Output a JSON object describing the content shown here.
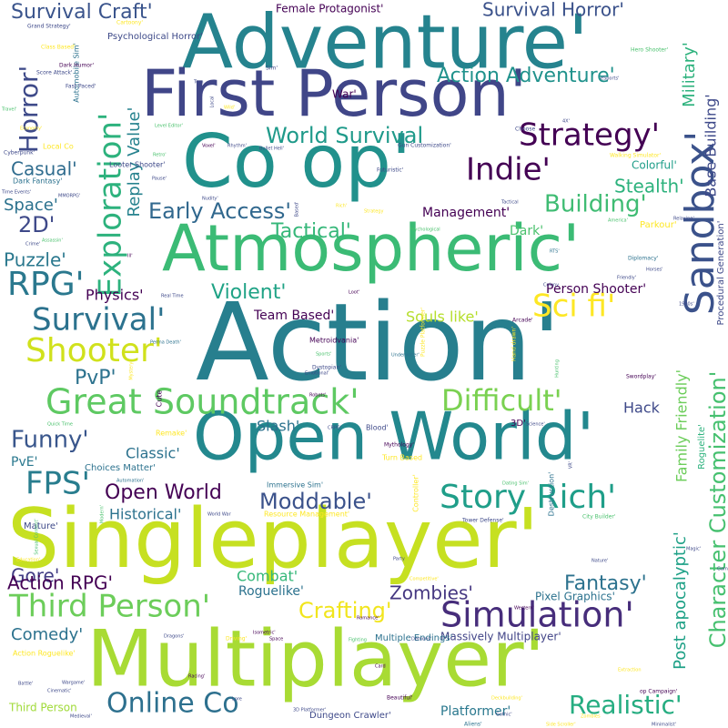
{
  "palette": {
    "background": "#ffffff",
    "colormap": "viridis",
    "colors": [
      "#440154",
      "#46337e",
      "#365c8d",
      "#277f8e",
      "#1fa187",
      "#4ac16d",
      "#a0da39",
      "#d8e219",
      "#fde725"
    ]
  },
  "words": [
    {
      "text": "Action'",
      "color": "#277f8e",
      "weight": 100
    },
    {
      "text": "Singleplayer'",
      "color": "#c6e021",
      "weight": 90
    },
    {
      "text": "Multiplayer'",
      "color": "#a8db34",
      "weight": 82
    },
    {
      "text": "Adventure'",
      "color": "#25838e",
      "weight": 78
    },
    {
      "text": "Co op'",
      "color": "#21918c",
      "weight": 76
    },
    {
      "text": "Open World'",
      "color": "#23888e",
      "weight": 72
    },
    {
      "text": "First Person'",
      "color": "#404688",
      "weight": 70
    },
    {
      "text": "Atmospheric'",
      "color": "#3bbb75",
      "weight": 68
    },
    {
      "text": "Sandbox'",
      "color": "#3b528b",
      "weight": 48
    },
    {
      "text": "Great Soundtrack'",
      "color": "#5ec962",
      "weight": 46
    },
    {
      "text": "Simulation'",
      "color": "#472d7b",
      "weight": 40
    },
    {
      "text": "Story Rich'",
      "color": "#1f9e89",
      "weight": 40
    },
    {
      "text": "Exploration'",
      "color": "#2db27d",
      "weight": 40
    },
    {
      "text": "Shooter'",
      "color": "#d0e11c",
      "weight": 36
    },
    {
      "text": "Strategy'",
      "color": "#440154",
      "weight": 36
    },
    {
      "text": "Indie'",
      "color": "#440154",
      "weight": 36
    },
    {
      "text": "Survival'",
      "color": "#2c728e",
      "weight": 34
    },
    {
      "text": "Difficult'",
      "color": "#7ad151",
      "weight": 34
    },
    {
      "text": "Third Person'",
      "color": "#6ccd5a",
      "weight": 32
    },
    {
      "text": "FPS'",
      "color": "#287d8e",
      "weight": 32
    },
    {
      "text": "Sci fi'",
      "color": "#fde725",
      "weight": 32
    },
    {
      "text": "RPG'",
      "color": "#2a788e",
      "weight": 32
    },
    {
      "text": "Online Co",
      "color": "#2d708e",
      "weight": 30
    },
    {
      "text": "Funny'",
      "color": "#39568c",
      "weight": 28
    },
    {
      "text": "Horror'",
      "color": "#3e4a89",
      "weight": 28
    },
    {
      "text": "Realistic'",
      "color": "#26ad81",
      "weight": 26
    },
    {
      "text": "Character Customization'",
      "color": "#46c06f",
      "weight": 22
    },
    {
      "text": "Building'",
      "color": "#3fbc73",
      "weight": 26
    },
    {
      "text": "World Survival",
      "color": "#1f9a8a",
      "weight": 24
    },
    {
      "text": "Early Access'",
      "color": "#31688e",
      "weight": 24
    },
    {
      "text": "Moddable'",
      "color": "#3b528b",
      "weight": 24
    },
    {
      "text": "Crafting'",
      "color": "#f1e51d",
      "weight": 24
    },
    {
      "text": "Survival Craft'",
      "color": "#3a548c",
      "weight": 22
    },
    {
      "text": "Action Adventure'",
      "color": "#20928c",
      "weight": 22
    },
    {
      "text": "Fantasy'",
      "color": "#2c728e",
      "weight": 22
    },
    {
      "text": "Tactical'",
      "color": "#35b779",
      "weight": 22
    },
    {
      "text": "Survival Horror'",
      "color": "#3b528b",
      "weight": 20
    },
    {
      "text": "Military'",
      "color": "#2db27d",
      "weight": 18
    },
    {
      "text": "Stealth'",
      "color": "#2db27d",
      "weight": 20
    },
    {
      "text": "Open World",
      "color": "#440154",
      "weight": 22
    },
    {
      "text": "Violent'",
      "color": "#20a386",
      "weight": 22
    },
    {
      "text": "Post apocalyptic'",
      "color": "#1fa187",
      "weight": 18
    },
    {
      "text": "Replay Value'",
      "color": "#26828e",
      "weight": 18
    },
    {
      "text": "Base Building'",
      "color": "#3e4989",
      "weight": 16
    },
    {
      "text": "Family Friendly'",
      "color": "#6ccd5a",
      "weight": 16
    },
    {
      "text": "Zombies'",
      "color": "#453781",
      "weight": 20
    },
    {
      "text": "Gore'",
      "color": "#433e85",
      "weight": 20
    },
    {
      "text": "Action RPG'",
      "color": "#440154",
      "weight": 20
    },
    {
      "text": "Puzzle'",
      "color": "#2a788e",
      "weight": 20
    },
    {
      "text": "Casual'",
      "color": "#2f6c8e",
      "weight": 20
    },
    {
      "text": "Comedy'",
      "color": "#2c728e",
      "weight": 18
    },
    {
      "text": "Space'",
      "color": "#2c728e",
      "weight": 18
    },
    {
      "text": "2D'",
      "color": "#3e4989",
      "weight": 22
    },
    {
      "text": "PvP'",
      "color": "#2c728e",
      "weight": 22
    },
    {
      "text": "Hack",
      "color": "#3e4989",
      "weight": 16
    },
    {
      "text": "Slash'",
      "color": "#2c728e",
      "weight": 16
    },
    {
      "text": "Classic'",
      "color": "#2c728e",
      "weight": 16
    },
    {
      "text": "Historical'",
      "color": "#2c728e",
      "weight": 16
    },
    {
      "text": "Management'",
      "color": "#440154",
      "weight": 14
    },
    {
      "text": "Physics'",
      "color": "#440154",
      "weight": 16
    },
    {
      "text": "Team Based'",
      "color": "#440154",
      "weight": 14
    },
    {
      "text": "Souls like'",
      "color": "#b5de2b",
      "weight": 16
    },
    {
      "text": "Person Shooter'",
      "color": "#440154",
      "weight": 14
    },
    {
      "text": "Dark'",
      "color": "#4ac16d",
      "weight": 14
    },
    {
      "text": "Combat'",
      "color": "#35b779",
      "weight": 16
    },
    {
      "text": "Roguelike'",
      "color": "#2c728e",
      "weight": 14
    },
    {
      "text": "Pixel Graphics'",
      "color": "#2c728e",
      "weight": 12
    },
    {
      "text": "Massively Multiplayer'",
      "color": "#414487",
      "weight": 12
    },
    {
      "text": "Platformer'",
      "color": "#2a788e",
      "weight": 14
    },
    {
      "text": "PvE'",
      "color": "#2a788e",
      "weight": 14
    },
    {
      "text": "Choices Matter'",
      "color": "#2c728e",
      "weight": 10
    },
    {
      "text": "Colorful'",
      "color": "#1f9e89",
      "weight": 12
    },
    {
      "text": "Parkour'",
      "color": "#fde725",
      "weight": 10
    },
    {
      "text": "Roguelite'",
      "color": "#2db27d",
      "weight": 10
    },
    {
      "text": "Female Protagonist'",
      "color": "#440154",
      "weight": 12
    },
    {
      "text": "Psychological Horror'",
      "color": "#3e4a89",
      "weight": 10
    },
    {
      "text": "War'",
      "color": "#440154",
      "weight": 12
    },
    {
      "text": "Mature'",
      "color": "#3e4989",
      "weight": 10
    },
    {
      "text": "Third Person",
      "color": "#a0da39",
      "weight": 12
    },
    {
      "text": "Dungeon Crawler'",
      "color": "#3e4989",
      "weight": 10
    },
    {
      "text": "Multiple Endings'",
      "color": "#2c728e",
      "weight": 10
    },
    {
      "text": "Procedural Generation'",
      "color": "#3e4989",
      "weight": 10
    },
    {
      "text": "Hero Shooter'",
      "color": "#4ac16d",
      "weight": 6
    },
    {
      "text": "Walking Simulator'",
      "color": "#fde725",
      "weight": 6
    },
    {
      "text": "Automobile Sim'",
      "color": "#2c728e",
      "weight": 8
    },
    {
      "text": "Cyberpunk'",
      "color": "#3e4989",
      "weight": 6
    },
    {
      "text": "Dark Fantasy'",
      "color": "#2c728e",
      "weight": 8
    },
    {
      "text": "Local Co",
      "color": "#fde725",
      "weight": 8
    },
    {
      "text": "Looter Shooter'",
      "color": "#3e4989",
      "weight": 8
    },
    {
      "text": "Gun Customization'",
      "color": "#3e4989",
      "weight": 6
    },
    {
      "text": "Turn Based",
      "color": "#fde725",
      "weight": 8
    },
    {
      "text": "Resource Management'",
      "color": "#fde725",
      "weight": 8
    },
    {
      "text": "Immersive Sim'",
      "color": "#2c728e",
      "weight": 8
    },
    {
      "text": "Action Roguelike'",
      "color": "#fde725",
      "weight": 8
    },
    {
      "text": "Metroidvania'",
      "color": "#440154",
      "weight": 8
    },
    {
      "text": "Dystopian'",
      "color": "#3e4989",
      "weight": 6
    },
    {
      "text": "Puzzle Platformer'",
      "color": "#fde725",
      "weight": 6
    },
    {
      "text": "Destruction'",
      "color": "#2c728e",
      "weight": 8
    },
    {
      "text": "Controller'",
      "color": "#fde725",
      "weight": 8
    },
    {
      "text": "City Builder'",
      "color": "#4ac16d",
      "weight": 6
    },
    {
      "text": "Tower Defense'",
      "color": "#3e4989",
      "weight": 6
    },
    {
      "text": "Cute",
      "color": "#440154",
      "weight": 8
    },
    {
      "text": "Remake'",
      "color": "#fde725",
      "weight": 8
    },
    {
      "text": "Mythology'",
      "color": "#440154",
      "weight": 6
    },
    {
      "text": "3D'",
      "color": "#440154",
      "weight": 10
    },
    {
      "text": "Blood'",
      "color": "#3e4989",
      "weight": 8
    },
    {
      "text": "Hand drawn'",
      "color": "#fde725",
      "weight": 6
    },
    {
      "text": "Arcade'",
      "color": "#440154",
      "weight": 6
    },
    {
      "text": "Swordplay'",
      "color": "#440154",
      "weight": 6
    },
    {
      "text": "Diplomacy'",
      "color": "#2c728e",
      "weight": 6
    },
    {
      "text": "Grand Strategy'",
      "color": "#3e4989",
      "weight": 6
    },
    {
      "text": "Cartoony'",
      "color": "#fde725",
      "weight": 6
    },
    {
      "text": "Class Based'",
      "color": "#fde725",
      "weight": 6
    },
    {
      "text": "Dark Humor'",
      "color": "#440154",
      "weight": 6
    },
    {
      "text": "Score Attack'",
      "color": "#3e4989",
      "weight": 6
    },
    {
      "text": "Fast Paced'",
      "color": "#3e4989",
      "weight": 6
    },
    {
      "text": "Travel'",
      "color": "#4ac16d",
      "weight": 5
    },
    {
      "text": "Economy'",
      "color": "#fde725",
      "weight": 5
    },
    {
      "text": "MMORPG'",
      "color": "#3e4989",
      "weight": 5
    },
    {
      "text": "Time Events'",
      "color": "#3e4989",
      "weight": 5
    },
    {
      "text": "Crime'",
      "color": "#3e4989",
      "weight": 5
    },
    {
      "text": "Assassin'",
      "color": "#4ac16d",
      "weight": 5
    },
    {
      "text": "Real Time",
      "color": "#3e4989",
      "weight": 5
    },
    {
      "text": "Perma Death'",
      "color": "#2c728e",
      "weight": 5
    },
    {
      "text": "Quick Time",
      "color": "#4ac16d",
      "weight": 5
    },
    {
      "text": "Automation'",
      "color": "#2c728e",
      "weight": 5
    },
    {
      "text": "Sexual Content'",
      "color": "#4ac16d",
      "weight": 5
    },
    {
      "text": "Modern'",
      "color": "#4ac16d",
      "weight": 5
    },
    {
      "text": "World War",
      "color": "#3e4989",
      "weight": 5
    },
    {
      "text": "Dragons'",
      "color": "#3e4989",
      "weight": 5
    },
    {
      "text": "Driving'",
      "color": "#fde725",
      "weight": 6
    },
    {
      "text": "Racing'",
      "color": "#440154",
      "weight": 5
    },
    {
      "text": "Lore",
      "color": "#3e4989",
      "weight": 5
    },
    {
      "text": "Medieval'",
      "color": "#3e4989",
      "weight": 5
    },
    {
      "text": "3D Platformer'",
      "color": "#3e4989",
      "weight": 5
    },
    {
      "text": "Beautiful'",
      "color": "#440154",
      "weight": 6
    },
    {
      "text": "Aliens'",
      "color": "#2c728e",
      "weight": 6
    },
    {
      "text": "Card",
      "color": "#440154",
      "weight": 5
    },
    {
      "text": "Fighting",
      "color": "#4ac16d",
      "weight": 5
    },
    {
      "text": "Demons'",
      "color": "#3e4989",
      "weight": 5
    },
    {
      "text": "Romance'",
      "color": "#440154",
      "weight": 5
    },
    {
      "text": "Competitive'",
      "color": "#fde725",
      "weight": 5
    },
    {
      "text": "Western'",
      "color": "#440154",
      "weight": 5
    },
    {
      "text": "Side Scroller'",
      "color": "#fde725",
      "weight": 5
    },
    {
      "text": "Deckbuilding'",
      "color": "#fde725",
      "weight": 5
    },
    {
      "text": "Extraction",
      "color": "#fde725",
      "weight": 5
    },
    {
      "text": "op Campaign'",
      "color": "#440154",
      "weight": 6
    },
    {
      "text": "Isometric'",
      "color": "#440154",
      "weight": 5
    },
    {
      "text": "Space",
      "color": "#440154",
      "weight": 5
    },
    {
      "text": "Rhythm'",
      "color": "#3e4989",
      "weight": 5
    },
    {
      "text": "Bullet Hell'",
      "color": "#3e4989",
      "weight": 5
    },
    {
      "text": "Futuristic'",
      "color": "#3e4989",
      "weight": 6
    },
    {
      "text": "Tactical",
      "color": "#3e4989",
      "weight": 5
    },
    {
      "text": "Colony",
      "color": "#3e4989",
      "weight": 5
    },
    {
      "text": "Horses'",
      "color": "#3e4989",
      "weight": 5
    },
    {
      "text": "Relaxing'",
      "color": "#3e4989",
      "weight": 5
    },
    {
      "text": "America'",
      "color": "#4ac16d",
      "weight": 5
    },
    {
      "text": "Choose",
      "color": "#3e4989",
      "weight": 5
    },
    {
      "text": "Level Editor'",
      "color": "#4ac16d",
      "weight": 5
    },
    {
      "text": "Retro'",
      "color": "#4ac16d",
      "weight": 5
    },
    {
      "text": "Pause'",
      "color": "#3e4989",
      "weight": 5
    },
    {
      "text": "Nudity'",
      "color": "#3e4989",
      "weight": 5
    },
    {
      "text": "Voxel'",
      "color": "#440154",
      "weight": 5
    },
    {
      "text": "Rich'",
      "color": "#fde725",
      "weight": 5
    },
    {
      "text": "Strategy",
      "color": "#fde725",
      "weight": 5
    },
    {
      "text": "Psychological",
      "color": "#4ac16d",
      "weight": 5
    },
    {
      "text": "RTS'",
      "color": "#2c728e",
      "weight": 5
    },
    {
      "text": "Sports'",
      "color": "#4ac16d",
      "weight": 5
    },
    {
      "text": "Underwater'",
      "color": "#2c728e",
      "weight": 5
    },
    {
      "text": "Emotional'",
      "color": "#3e4989",
      "weight": 5
    },
    {
      "text": "Hunting",
      "color": "#4ac16d",
      "weight": 5
    },
    {
      "text": "Robots'",
      "color": "#440154",
      "weight": 5
    },
    {
      "text": "Science'",
      "color": "#3e4989",
      "weight": 5
    },
    {
      "text": "Magic'",
      "color": "#3e4989",
      "weight": 5
    },
    {
      "text": "Nature'",
      "color": "#3e4989",
      "weight": 5
    },
    {
      "text": "Game'",
      "color": "#3e4989",
      "weight": 5
    },
    {
      "text": "Dating Sim'",
      "color": "#4ac16d",
      "weight": 5
    },
    {
      "text": "eSports'",
      "color": "#3e4989",
      "weight": 5
    },
    {
      "text": "4X'",
      "color": "#3e4989",
      "weight": 5
    },
    {
      "text": "Sim'",
      "color": "#3e4989",
      "weight": 6
    },
    {
      "text": "Turn",
      "color": "#3e4989",
      "weight": 5
    },
    {
      "text": "Local",
      "color": "#3e4989",
      "weight": 5
    },
    {
      "text": "Wild'",
      "color": "#fde725",
      "weight": 5
    },
    {
      "text": "Based'",
      "color": "#3e4989",
      "weight": 5
    },
    {
      "text": "Ill'",
      "color": "#440154",
      "weight": 5
    },
    {
      "text": "Loot'",
      "color": "#440154",
      "weight": 5
    },
    {
      "text": "Friendly'",
      "color": "#3e4989",
      "weight": 5
    },
    {
      "text": "1980s'",
      "color": "#3e4989",
      "weight": 5
    },
    {
      "text": "Mystery'",
      "color": "#fde725",
      "weight": 5
    },
    {
      "text": "Party",
      "color": "#3e4989",
      "weight": 5
    },
    {
      "text": "Battle'",
      "color": "#3e4989",
      "weight": 5
    },
    {
      "text": "Cinematic'",
      "color": "#3e4989",
      "weight": 5
    },
    {
      "text": "Wargame'",
      "color": "#3e4989",
      "weight": 5
    },
    {
      "text": "Gothic'",
      "color": "#3e4989",
      "weight": 5
    },
    {
      "text": "Zombies",
      "color": "#fde725",
      "weight": 5
    },
    {
      "text": "Minimalist'",
      "color": "#3e4989",
      "weight": 5
    },
    {
      "text": "VR'",
      "color": "#3e4989",
      "weight": 5
    },
    {
      "text": "Education'",
      "color": "#fde725",
      "weight": 5
    },
    {
      "text": "CRPG'",
      "color": "#3e4989",
      "weight": 5
    },
    {
      "text": "Beat",
      "color": "#3e4989",
      "weight": 5
    }
  ]
}
